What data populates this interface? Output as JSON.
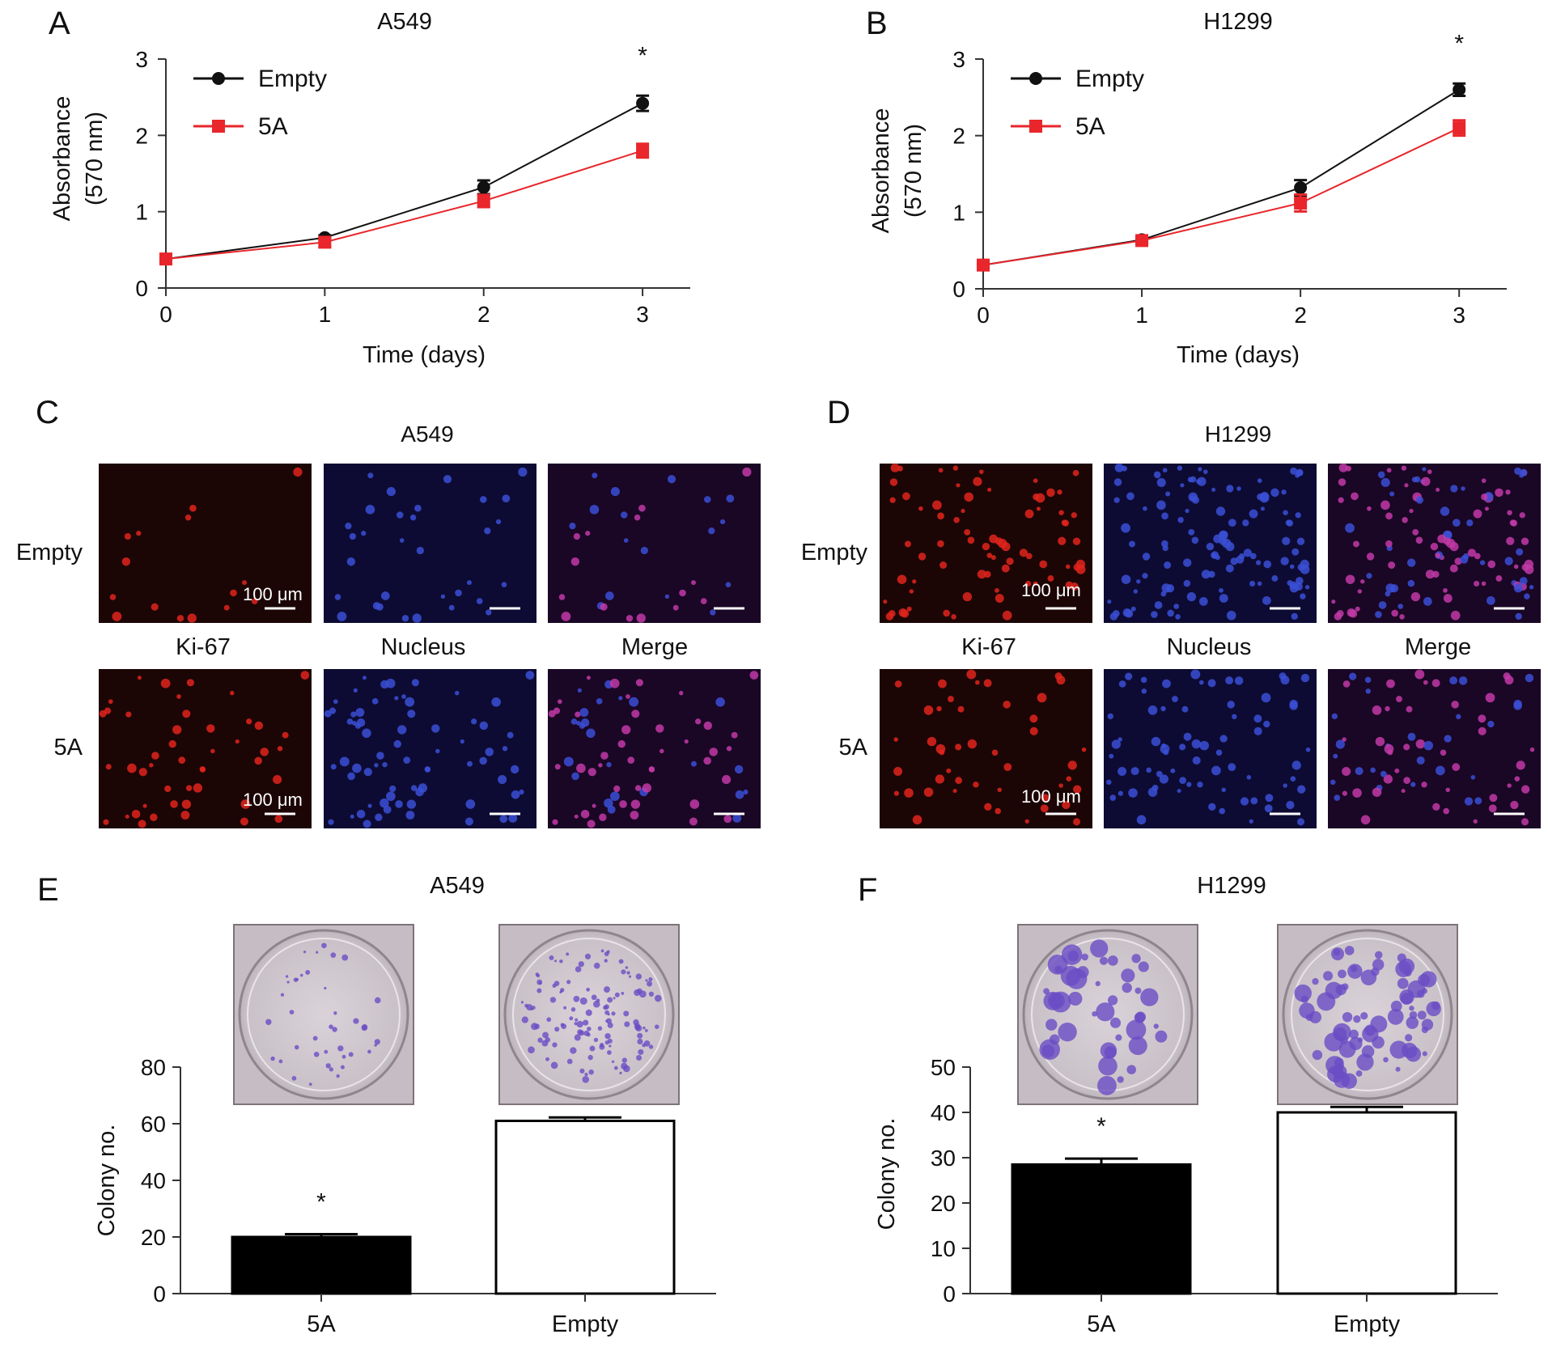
{
  "panel_letters": [
    "A",
    "B",
    "C",
    "D",
    "E",
    "F"
  ],
  "colors": {
    "empty_series": "#111111",
    "fiveA_series": "#e8262b",
    "bar_5A": "#000000",
    "bar_empty": "#ffffff",
    "ki67": "#e0241d",
    "nucleus": "#3b4fd6",
    "merge": "#c23aa7",
    "crystal_violet": "#6a4cc4"
  },
  "chart_data": [
    {
      "panel": "A",
      "type": "line",
      "title": "A549",
      "xlabel": "Time (days)",
      "ylabel": "Absorbance",
      "ylabel2": "(570 nm)",
      "x": [
        0,
        1,
        2,
        3
      ],
      "xlim": [
        0,
        3.3
      ],
      "ylim": [
        0,
        3
      ],
      "xticks": [
        "0",
        "1",
        "2",
        "3"
      ],
      "yticks": [
        "0",
        "1",
        "2",
        "3"
      ],
      "legend": "top-left",
      "series": [
        {
          "name": "Empty",
          "color": "#111111",
          "marker": "circle",
          "values": [
            0.38,
            0.66,
            1.32,
            2.42
          ],
          "err": [
            0.03,
            0.03,
            0.09,
            0.1
          ]
        },
        {
          "name": "5A",
          "color": "#e8262b",
          "marker": "square",
          "values": [
            0.38,
            0.6,
            1.14,
            1.8
          ],
          "err": [
            0.03,
            0.06,
            0.08,
            0.09
          ]
        }
      ],
      "annotations": [
        {
          "x": 3,
          "text": "*"
        }
      ]
    },
    {
      "panel": "B",
      "type": "line",
      "title": "H1299",
      "xlabel": "Time (days)",
      "ylabel": "Absorbance",
      "ylabel2": "(570 nm)",
      "x": [
        0,
        1,
        2,
        3
      ],
      "xlim": [
        0,
        3.3
      ],
      "ylim": [
        0,
        3
      ],
      "xticks": [
        "0",
        "1",
        "2",
        "3"
      ],
      "yticks": [
        "0",
        "1",
        "2",
        "3"
      ],
      "legend": "top-left",
      "series": [
        {
          "name": "Empty",
          "color": "#111111",
          "marker": "circle",
          "values": [
            0.31,
            0.64,
            1.32,
            2.6
          ],
          "err": [
            0.02,
            0.03,
            0.1,
            0.08
          ]
        },
        {
          "name": "5A",
          "color": "#e8262b",
          "marker": "square",
          "values": [
            0.31,
            0.63,
            1.12,
            2.1
          ],
          "err": [
            0.02,
            0.03,
            0.11,
            0.1
          ]
        }
      ],
      "annotations": [
        {
          "x": 3,
          "text": "*"
        }
      ]
    },
    {
      "panel": "E",
      "type": "bar",
      "title": "A549",
      "ylabel": "Colony no.",
      "categories": [
        "5A",
        "Empty"
      ],
      "values": [
        20,
        61
      ],
      "err": [
        1,
        1.2
      ],
      "ylim": [
        0,
        80
      ],
      "yticks": [
        "0",
        "20",
        "40",
        "60",
        "80"
      ],
      "annotations": [
        {
          "category": "5A",
          "text": "*"
        }
      ]
    },
    {
      "panel": "F",
      "type": "bar",
      "title": "H1299",
      "ylabel": "Colony no.",
      "categories": [
        "5A",
        "Empty"
      ],
      "values": [
        28.5,
        40
      ],
      "err": [
        1.3,
        1.2
      ],
      "ylim": [
        0,
        50
      ],
      "yticks": [
        "0",
        "10",
        "20",
        "30",
        "40",
        "50"
      ],
      "annotations": [
        {
          "category": "5A",
          "text": "*"
        }
      ]
    }
  ],
  "micrographs": [
    {
      "panel": "C",
      "title": "A549",
      "row_labels": [
        "Empty",
        "5A"
      ],
      "column_labels": [
        "Ki-67",
        "Nucleus",
        "Merge"
      ],
      "scale_bar": "100 μm"
    },
    {
      "panel": "D",
      "title": "H1299",
      "row_labels": [
        "Empty",
        "5A"
      ],
      "column_labels": [
        "Ki-67",
        "Nucleus",
        "Merge"
      ],
      "scale_bar": "100 μm"
    }
  ]
}
